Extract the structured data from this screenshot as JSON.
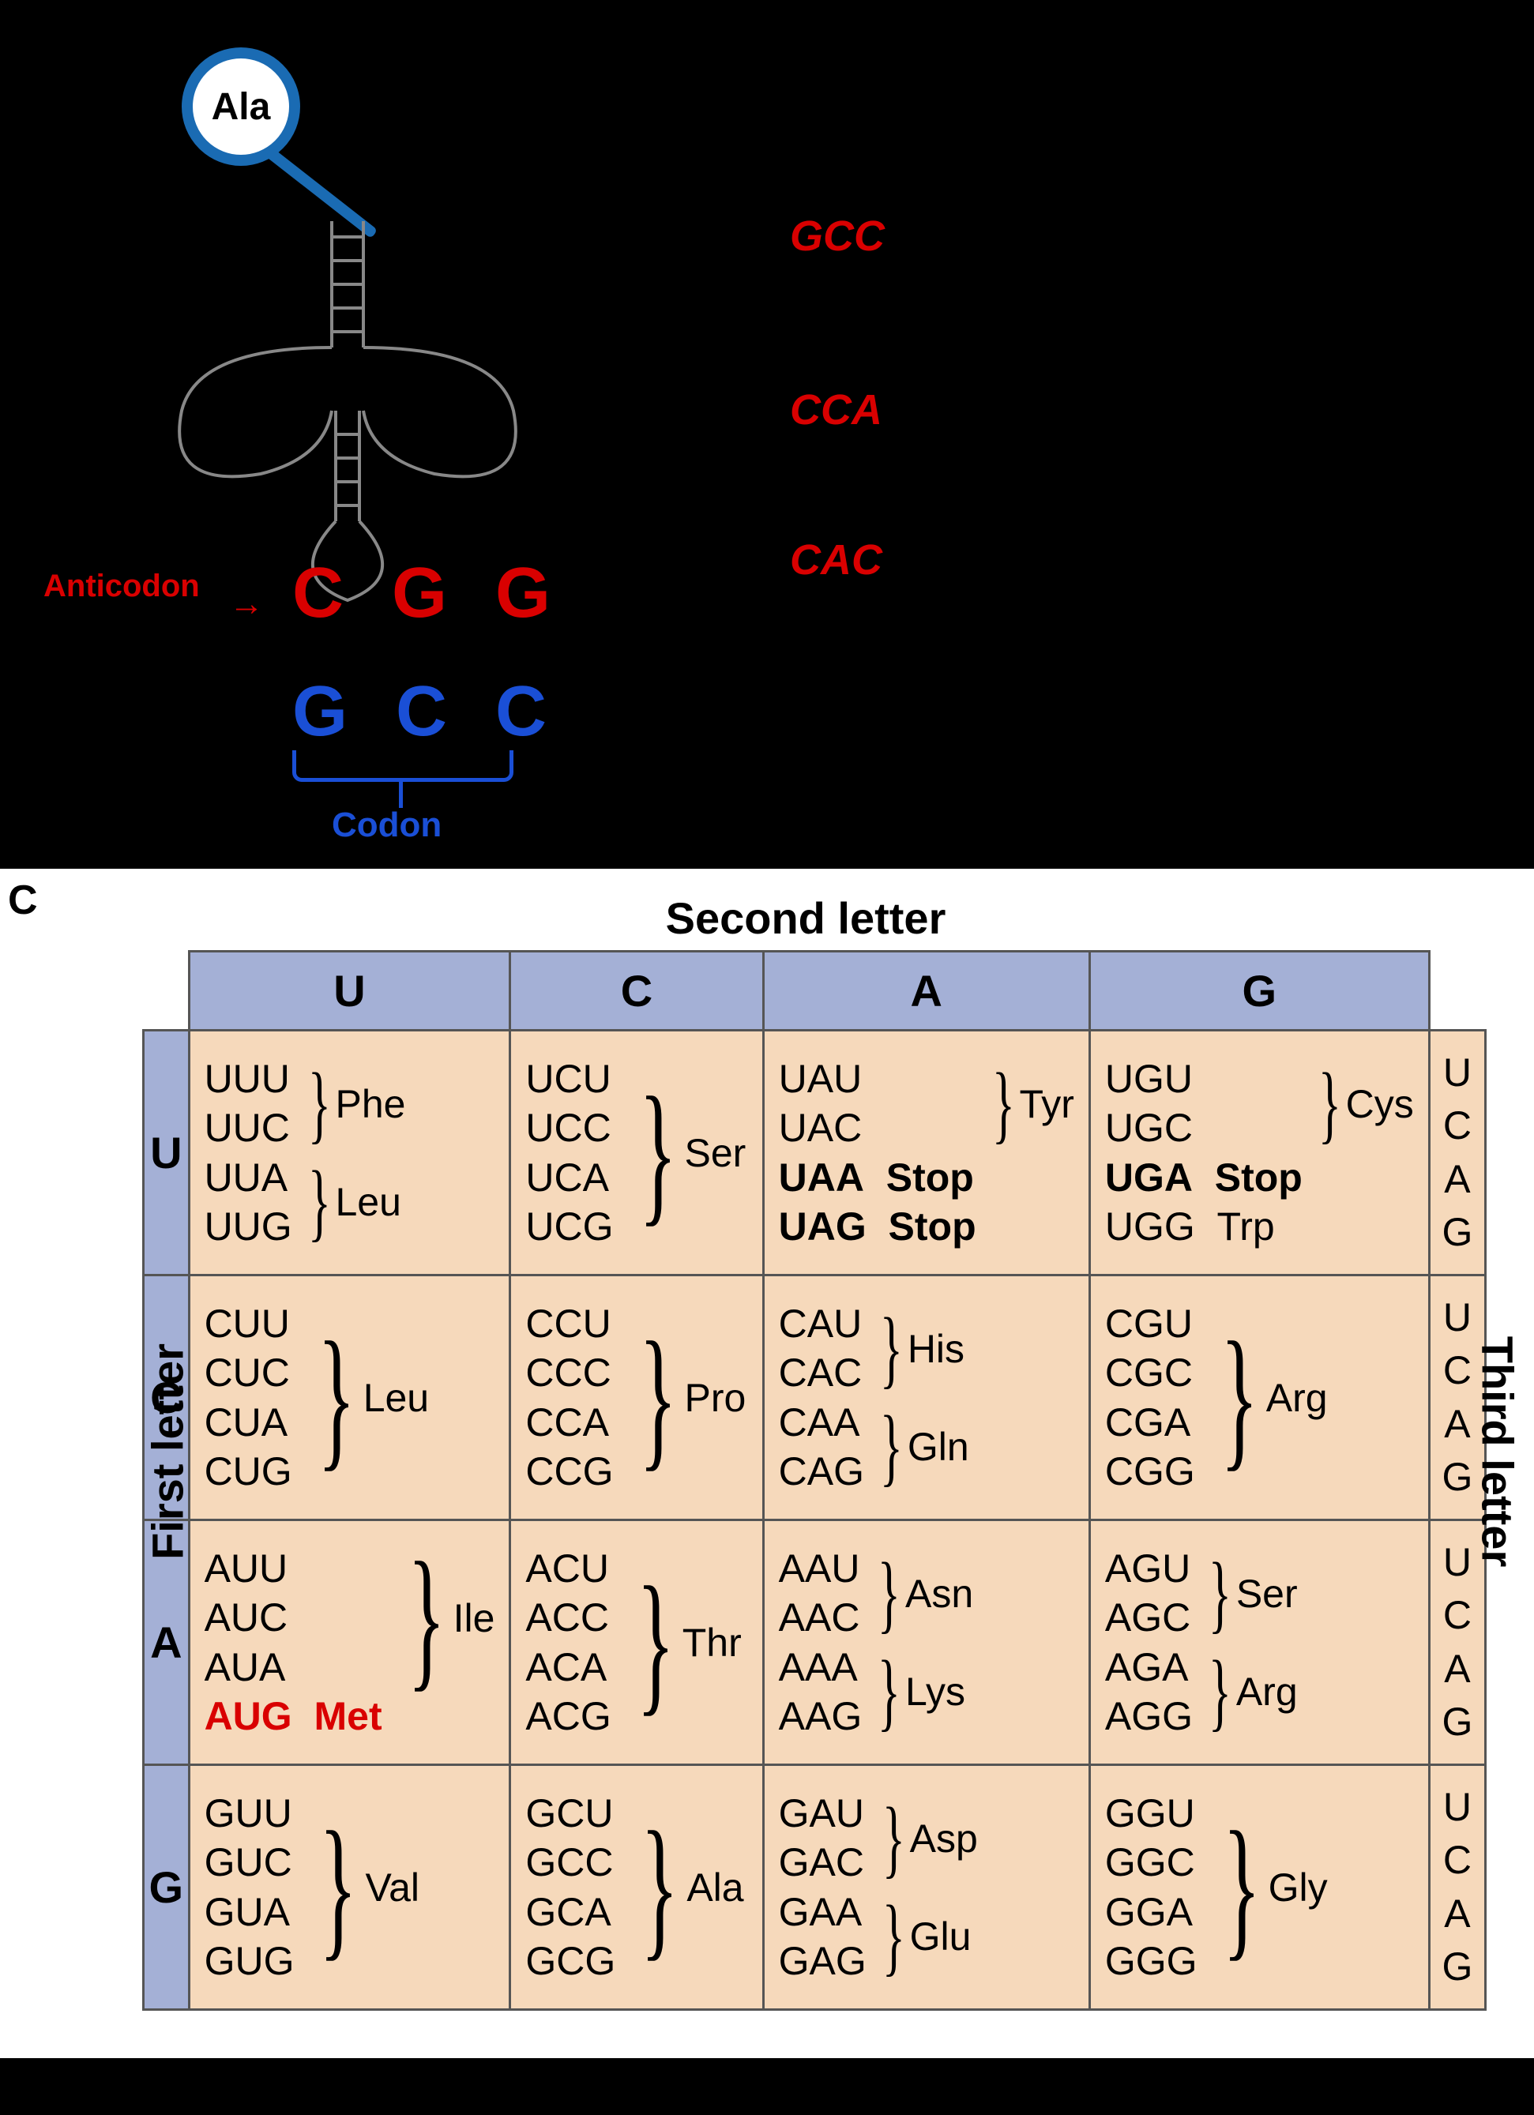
{
  "top": {
    "amino_acid_label": "Ala",
    "anticodon_label": "Anticodon",
    "anticodon_arrow": "→",
    "anticodon_seq": "C G G",
    "codon_seq": "G C C",
    "codon_label": "Codon",
    "right_rows": [
      {
        "prefix": "",
        "highlight": "GCC",
        "suffix": ""
      },
      {
        "prefix": "",
        "highlight": "CCA",
        "suffix": ""
      },
      {
        "prefix": "",
        "highlight": "CAC",
        "suffix": ""
      }
    ]
  },
  "codon_table": {
    "panel_label": "C",
    "top_label": "Second letter",
    "left_label": "First letter",
    "right_label": "Third letter",
    "columns": [
      "U",
      "C",
      "A",
      "G"
    ],
    "third_letters": [
      "U",
      "C",
      "A",
      "G"
    ],
    "header_bg": "#a4b0d6",
    "cell_bg": "#f6d9bb",
    "rows": [
      {
        "first": "U",
        "cells": [
          {
            "groups": [
              {
                "codons": [
                  "UUU",
                  "UUC"
                ],
                "aa": "Phe"
              },
              {
                "codons": [
                  "UUA",
                  "UUG"
                ],
                "aa": "Leu"
              }
            ]
          },
          {
            "groups": [
              {
                "codons": [
                  "UCU",
                  "UCC",
                  "UCA",
                  "UCG"
                ],
                "aa": "Ser"
              }
            ]
          },
          {
            "groups": [
              {
                "codons": [
                  "UAU",
                  "UAC"
                ],
                "aa": "Tyr"
              }
            ],
            "extras": [
              {
                "codon": "UAA",
                "aa": "Stop",
                "bold": true
              },
              {
                "codon": "UAG",
                "aa": "Stop",
                "bold": true
              }
            ]
          },
          {
            "groups": [
              {
                "codons": [
                  "UGU",
                  "UGC"
                ],
                "aa": "Cys"
              }
            ],
            "extras": [
              {
                "codon": "UGA",
                "aa": "Stop",
                "bold": true
              },
              {
                "codon": "UGG",
                "aa": "Trp"
              }
            ]
          }
        ]
      },
      {
        "first": "C",
        "cells": [
          {
            "groups": [
              {
                "codons": [
                  "CUU",
                  "CUC",
                  "CUA",
                  "CUG"
                ],
                "aa": "Leu"
              }
            ]
          },
          {
            "groups": [
              {
                "codons": [
                  "CCU",
                  "CCC",
                  "CCA",
                  "CCG"
                ],
                "aa": "Pro"
              }
            ]
          },
          {
            "groups": [
              {
                "codons": [
                  "CAU",
                  "CAC"
                ],
                "aa": "His"
              },
              {
                "codons": [
                  "CAA",
                  "CAG"
                ],
                "aa": "Gln"
              }
            ]
          },
          {
            "groups": [
              {
                "codons": [
                  "CGU",
                  "CGC",
                  "CGA",
                  "CGG"
                ],
                "aa": "Arg"
              }
            ]
          }
        ]
      },
      {
        "first": "A",
        "cells": [
          {
            "groups": [
              {
                "codons": [
                  "AUU",
                  "AUC",
                  "AUA"
                ],
                "aa": "Ile"
              }
            ],
            "extras": [
              {
                "codon": "AUG",
                "aa": "Met",
                "red": true
              }
            ]
          },
          {
            "groups": [
              {
                "codons": [
                  "ACU",
                  "ACC",
                  "ACA",
                  "ACG"
                ],
                "aa": "Thr"
              }
            ]
          },
          {
            "groups": [
              {
                "codons": [
                  "AAU",
                  "AAC"
                ],
                "aa": "Asn"
              },
              {
                "codons": [
                  "AAA",
                  "AAG"
                ],
                "aa": "Lys"
              }
            ]
          },
          {
            "groups": [
              {
                "codons": [
                  "AGU",
                  "AGC"
                ],
                "aa": "Ser"
              },
              {
                "codons": [
                  "AGA",
                  "AGG"
                ],
                "aa": "Arg"
              }
            ]
          }
        ]
      },
      {
        "first": "G",
        "cells": [
          {
            "groups": [
              {
                "codons": [
                  "GUU",
                  "GUC",
                  "GUA",
                  "GUG"
                ],
                "aa": "Val"
              }
            ]
          },
          {
            "groups": [
              {
                "codons": [
                  "GCU",
                  "GCC",
                  "GCA",
                  "GCG"
                ],
                "aa": "Ala"
              }
            ]
          },
          {
            "groups": [
              {
                "codons": [
                  "GAU",
                  "GAC"
                ],
                "aa": "Asp"
              },
              {
                "codons": [
                  "GAA",
                  "GAG"
                ],
                "aa": "Glu"
              }
            ]
          },
          {
            "groups": [
              {
                "codons": [
                  "GGU",
                  "GGC",
                  "GGA",
                  "GGG"
                ],
                "aa": "Gly"
              }
            ]
          }
        ]
      }
    ]
  }
}
